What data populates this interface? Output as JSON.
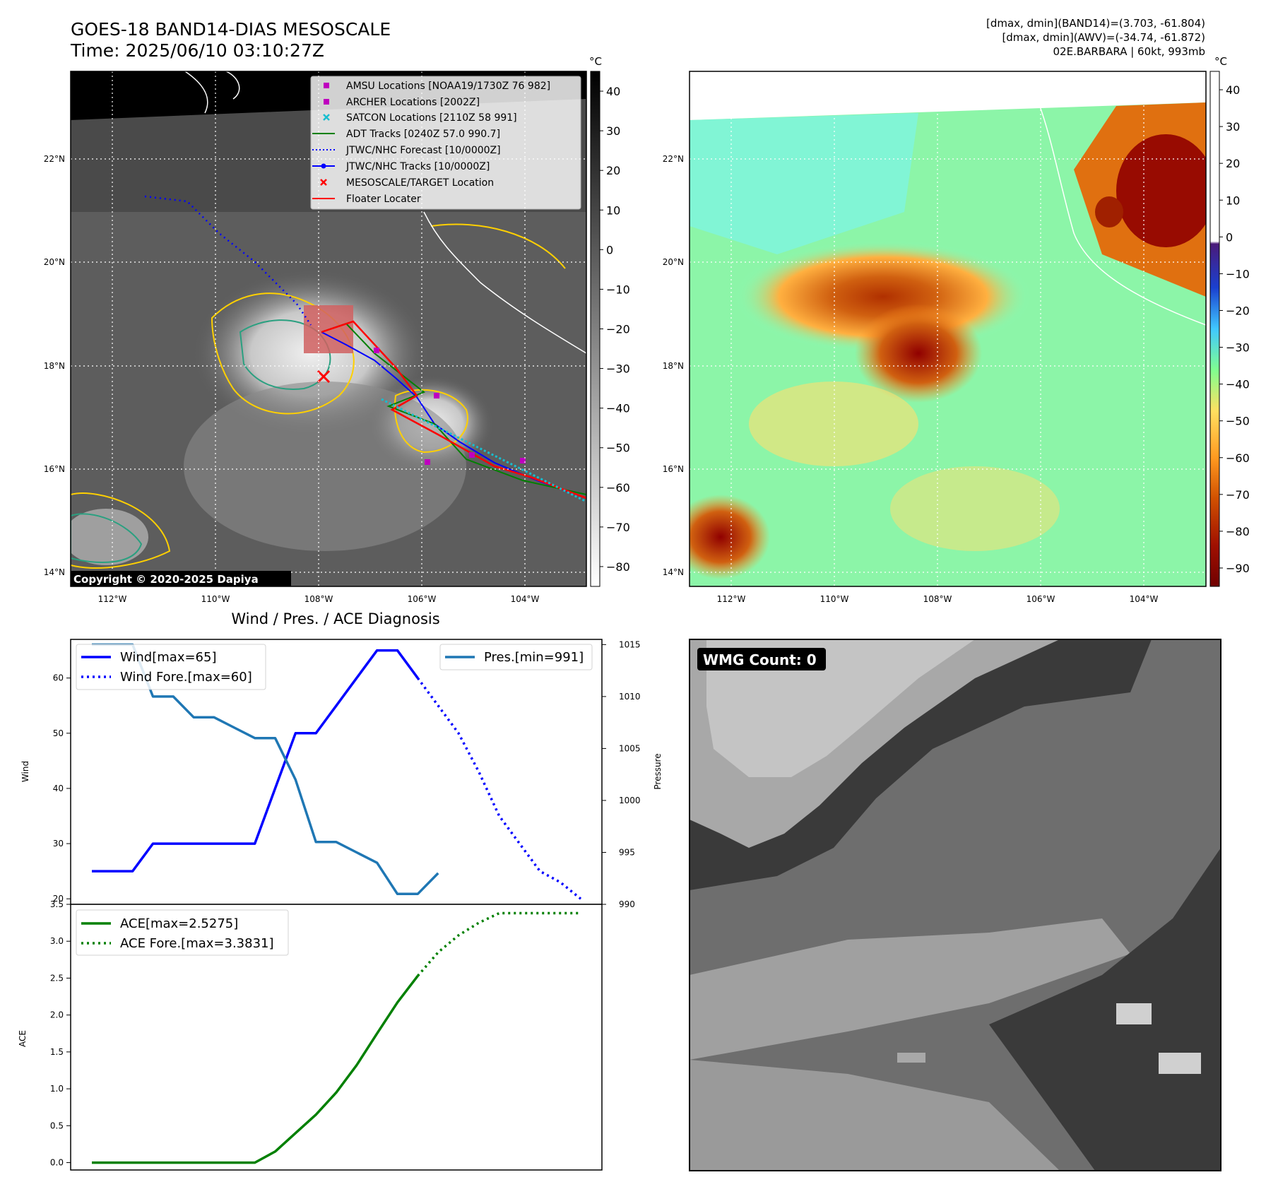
{
  "header": {
    "title_line1": "GOES-18 BAND14-DIAS MESOSCALE",
    "title_line2": "Time: 2025/06/10 03:10:27Z",
    "info_line1": "[dmax, dmin](BAND14)=(3.703, -61.804)",
    "info_line2": "[dmax, dmin](AWV)=(-34.74, -61.872)",
    "info_line3": "02E.BARBARA | 60kt, 993mb"
  },
  "ir_panel": {
    "colorbar_unit": "°C",
    "colorbar_ticks": [
      "40",
      "30",
      "20",
      "10",
      "0",
      "−10",
      "−20",
      "−30",
      "−40",
      "−50",
      "−60",
      "−70",
      "−80"
    ],
    "lon_ticks": [
      "112°W",
      "110°W",
      "108°W",
      "106°W",
      "104°W"
    ],
    "lat_ticks": [
      "22°N",
      "20°N",
      "18°N",
      "16°N",
      "14°N"
    ],
    "copyright": "Copyright © 2020-2025 Dapiya",
    "legend": [
      {
        "label": "AMSU Locations [NOAA19/1730Z 76 982]",
        "marker": "square",
        "color": "#bf00bf"
      },
      {
        "label": "ARCHER Locations [2002Z]",
        "marker": "square",
        "color": "#bf00bf"
      },
      {
        "label": "SATCON Locations [2110Z 58 991]",
        "marker": "x",
        "color": "#17becf"
      },
      {
        "label": "ADT Tracks [0240Z 57.0 990.7]",
        "marker": "line",
        "color": "#008000"
      },
      {
        "label": "JTWC/NHC Forecast [10/0000Z]",
        "marker": "dotted",
        "color": "#0000ff"
      },
      {
        "label": "JTWC/NHC Tracks [10/0000Z]",
        "marker": "line-dot",
        "color": "#0000ff"
      },
      {
        "label": "MESOSCALE/TARGET Location",
        "marker": "x",
        "color": "#ff0000"
      },
      {
        "label": "Floater Locater",
        "marker": "line",
        "color": "#ff0000"
      }
    ]
  },
  "awv_panel": {
    "colorbar_unit": "°C",
    "colorbar_ticks": [
      "40",
      "30",
      "20",
      "10",
      "0",
      "−10",
      "−20",
      "−30",
      "−40",
      "−50",
      "−60",
      "−70",
      "−80",
      "−90"
    ],
    "lon_ticks": [
      "112°W",
      "110°W",
      "108°W",
      "106°W",
      "104°W"
    ],
    "lat_ticks": [
      "22°N",
      "20°N",
      "18°N",
      "16°N",
      "14°N"
    ]
  },
  "wmg_panel": {
    "label": "WMG Count: 0"
  },
  "chart_data": [
    {
      "type": "line",
      "title": "Wind / Pres. / ACE Diagnosis",
      "ylabel": "Wind",
      "ylabel_right": "Pressure",
      "ylim": [
        19,
        67
      ],
      "ylim_right": [
        990,
        1015.5
      ],
      "yticks": [
        20,
        30,
        40,
        50,
        60
      ],
      "yticks_right": [
        990,
        995,
        1000,
        1005,
        1010,
        1015
      ],
      "x": [
        0,
        1,
        2,
        3,
        4,
        5,
        6,
        7,
        8,
        9,
        10,
        11,
        12,
        13,
        14,
        15,
        16,
        17,
        18,
        19,
        20,
        21,
        22,
        23,
        24
      ],
      "series": [
        {
          "name": "Wind[max=65]",
          "style": "solid",
          "color": "#0000ff",
          "axis": "left",
          "values": [
            25,
            25,
            25,
            30,
            30,
            30,
            30,
            30,
            30,
            40,
            50,
            50,
            55,
            60,
            65,
            65,
            60,
            null,
            null,
            null,
            null,
            null,
            null,
            null,
            null
          ]
        },
        {
          "name": "Wind Fore.[max=60]",
          "style": "dotted",
          "color": "#0000ff",
          "axis": "left",
          "values": [
            null,
            null,
            null,
            null,
            null,
            null,
            null,
            null,
            null,
            null,
            null,
            null,
            null,
            null,
            null,
            null,
            60,
            55,
            50,
            43,
            35,
            30,
            25,
            23,
            20
          ]
        },
        {
          "name": "Pres.[min=991]",
          "style": "solid",
          "color": "#1f77b4",
          "axis": "right",
          "values": [
            1015,
            1015,
            1015,
            1010,
            1010,
            1008,
            1008,
            1007,
            1006,
            1006,
            1002,
            996,
            996,
            995,
            994,
            991,
            991,
            993,
            null,
            null,
            null,
            null,
            null,
            null,
            null
          ]
        }
      ]
    },
    {
      "type": "line",
      "ylabel": "ACE",
      "ylim": [
        -0.1,
        3.5
      ],
      "yticks": [
        0.0,
        0.5,
        1.0,
        1.5,
        2.0,
        2.5,
        3.0,
        3.5
      ],
      "x": [
        0,
        1,
        2,
        3,
        4,
        5,
        6,
        7,
        8,
        9,
        10,
        11,
        12,
        13,
        14,
        15,
        16,
        17,
        18,
        19,
        20,
        21,
        22,
        23,
        24
      ],
      "series": [
        {
          "name": "ACE[max=2.5275]",
          "style": "solid",
          "color": "#008000",
          "values": [
            0,
            0,
            0,
            0,
            0,
            0,
            0,
            0,
            0,
            0.15,
            0.4,
            0.65,
            0.95,
            1.32,
            1.75,
            2.17,
            2.53,
            null,
            null,
            null,
            null,
            null,
            null,
            null,
            null
          ]
        },
        {
          "name": "ACE Fore.[max=3.3831]",
          "style": "dotted",
          "color": "#008000",
          "values": [
            null,
            null,
            null,
            null,
            null,
            null,
            null,
            null,
            null,
            null,
            null,
            null,
            null,
            null,
            null,
            null,
            2.53,
            2.85,
            3.08,
            3.25,
            3.38,
            3.38,
            3.38,
            3.38,
            3.38
          ]
        }
      ]
    }
  ]
}
